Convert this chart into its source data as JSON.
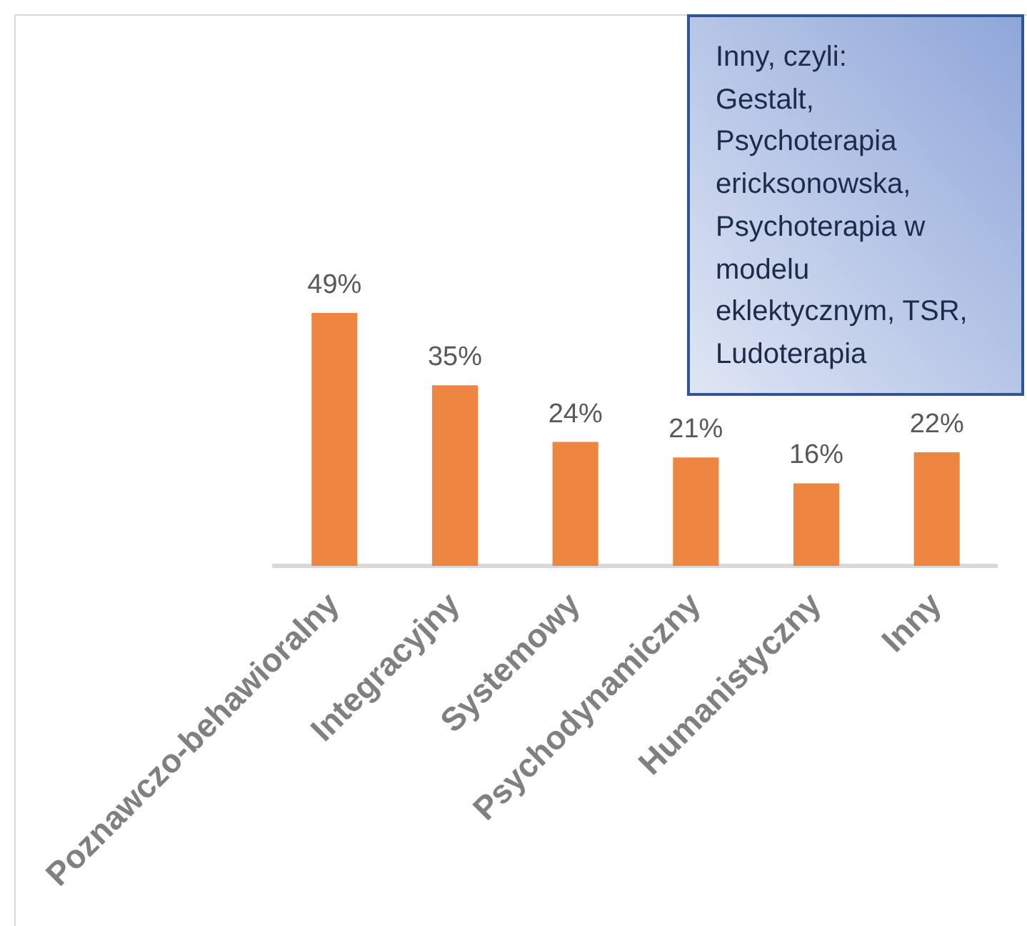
{
  "chart_data": {
    "type": "bar",
    "categories": [
      "Poznawczo-behawioralny",
      "Integracyjny",
      "Systemowy",
      "Psychodynamiczny",
      "Humanistyczny",
      "Inny"
    ],
    "values": [
      49,
      35,
      24,
      21,
      16,
      22
    ],
    "color": "#ee8540",
    "value_labels": [
      "49%",
      "35%",
      "24%",
      "21%",
      "16%",
      "22%"
    ],
    "annotations": [
      "Inny, czyli:\nGestalt, Psychoterapia ericksonowska, Psychoterapia w modelu eklektycznym, TSR, Ludoterapia"
    ],
    "tick_labels": "x"
  }
}
